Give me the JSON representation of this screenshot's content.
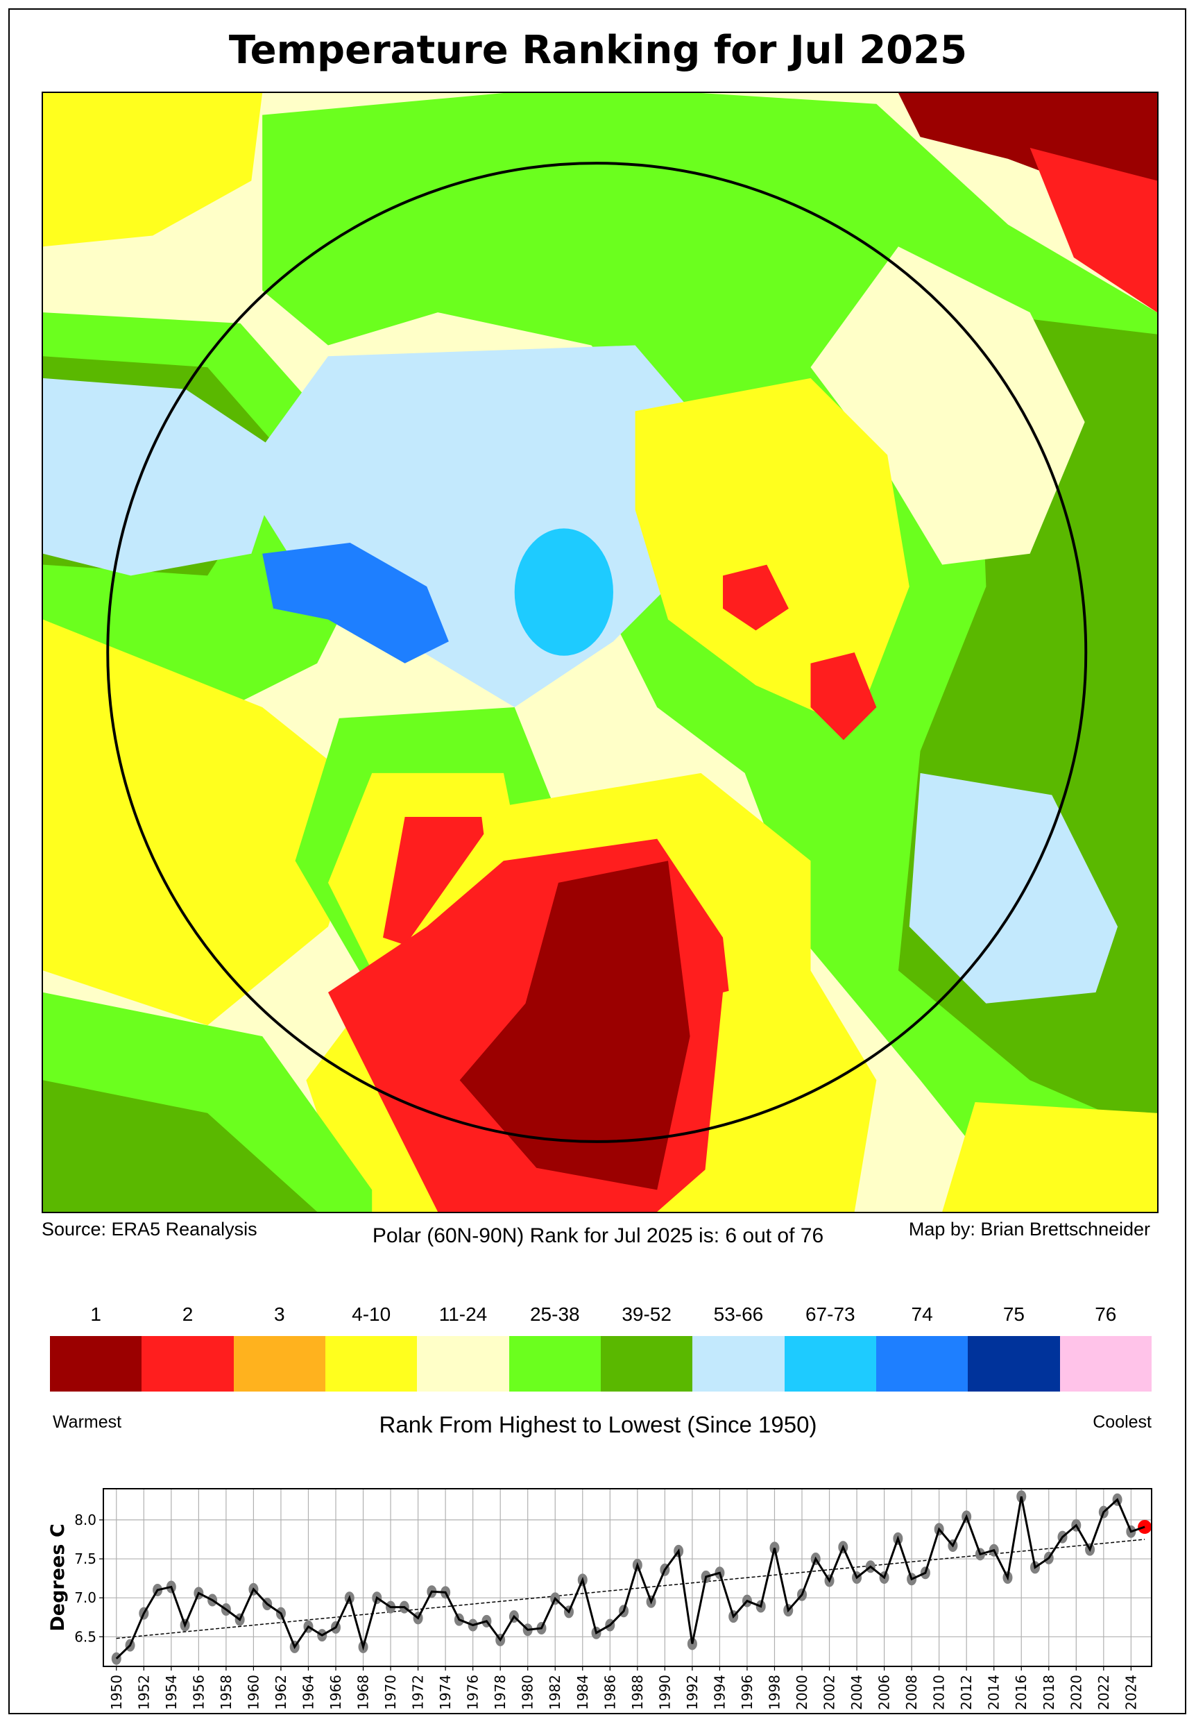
{
  "title": "Temperature Ranking for Jul 2025",
  "source": "Source: ERA5 Reanalysis",
  "summary": "Polar (60N-90N) Rank for Jul 2025 is: 6 out of 76",
  "credit": "Map by: Brian Brettschneider",
  "legend": {
    "items": [
      {
        "label": "1",
        "color": "#9B0000"
      },
      {
        "label": "2",
        "color": "#FF1E1E"
      },
      {
        "label": "3",
        "color": "#FFB21E"
      },
      {
        "label": "4-10",
        "color": "#FFFF1E"
      },
      {
        "label": "11-24",
        "color": "#FFFFC8"
      },
      {
        "label": "25-38",
        "color": "#6BFF1E"
      },
      {
        "label": "39-52",
        "color": "#5AB800"
      },
      {
        "label": "53-66",
        "color": "#C3E9FD"
      },
      {
        "label": "67-73",
        "color": "#1ECBFF"
      },
      {
        "label": "74",
        "color": "#1E7FFF"
      },
      {
        "label": "75",
        "color": "#00339B"
      },
      {
        "label": "76",
        "color": "#FFC3E9"
      }
    ],
    "left": "Warmest",
    "right": "Coolest",
    "caption": "Rank From Highest to Lowest (Since 1950)"
  },
  "chart_data": {
    "type": "line",
    "ylabel": "Degrees C",
    "xlabel": "",
    "ylim": [
      6.12,
      8.4
    ],
    "xlim": [
      1949.05,
      2025.5
    ],
    "yticks": [
      6.5,
      7.0,
      7.5,
      8.0
    ],
    "grid": true,
    "x": [
      1950,
      1951,
      1952,
      1953,
      1954,
      1955,
      1956,
      1957,
      1958,
      1959,
      1960,
      1961,
      1962,
      1963,
      1964,
      1965,
      1966,
      1967,
      1968,
      1969,
      1970,
      1971,
      1972,
      1973,
      1974,
      1975,
      1976,
      1977,
      1978,
      1979,
      1980,
      1981,
      1982,
      1983,
      1984,
      1985,
      1986,
      1987,
      1988,
      1989,
      1990,
      1991,
      1992,
      1993,
      1994,
      1995,
      1996,
      1997,
      1998,
      1999,
      2000,
      2001,
      2002,
      2003,
      2004,
      2005,
      2006,
      2007,
      2008,
      2009,
      2010,
      2011,
      2012,
      2013,
      2014,
      2015,
      2016,
      2017,
      2018,
      2019,
      2020,
      2021,
      2022,
      2023,
      2024,
      2025
    ],
    "values": [
      6.22,
      6.39,
      6.8,
      7.1,
      7.14,
      6.65,
      7.06,
      6.97,
      6.85,
      6.72,
      7.11,
      6.92,
      6.8,
      6.37,
      6.63,
      6.52,
      6.62,
      7.0,
      6.37,
      7.0,
      6.88,
      6.88,
      6.74,
      7.08,
      7.07,
      6.72,
      6.65,
      6.7,
      6.46,
      6.76,
      6.59,
      6.61,
      6.99,
      6.82,
      7.23,
      6.55,
      6.65,
      6.83,
      7.42,
      6.95,
      7.36,
      7.6,
      6.41,
      7.27,
      7.32,
      6.76,
      6.96,
      6.89,
      7.64,
      6.84,
      7.04,
      7.5,
      7.22,
      7.65,
      7.26,
      7.4,
      7.26,
      7.76,
      7.24,
      7.32,
      7.88,
      7.67,
      8.04,
      7.56,
      7.61,
      7.26,
      8.3,
      7.39,
      7.51,
      7.78,
      7.93,
      7.62,
      8.1,
      8.26,
      7.85,
      7.91
    ],
    "trend": {
      "x": [
        1950,
        2025
      ],
      "y": [
        6.48,
        7.75
      ]
    },
    "highlight": {
      "year": 2025,
      "color": "#FF0000"
    },
    "point_color": "#808080"
  }
}
